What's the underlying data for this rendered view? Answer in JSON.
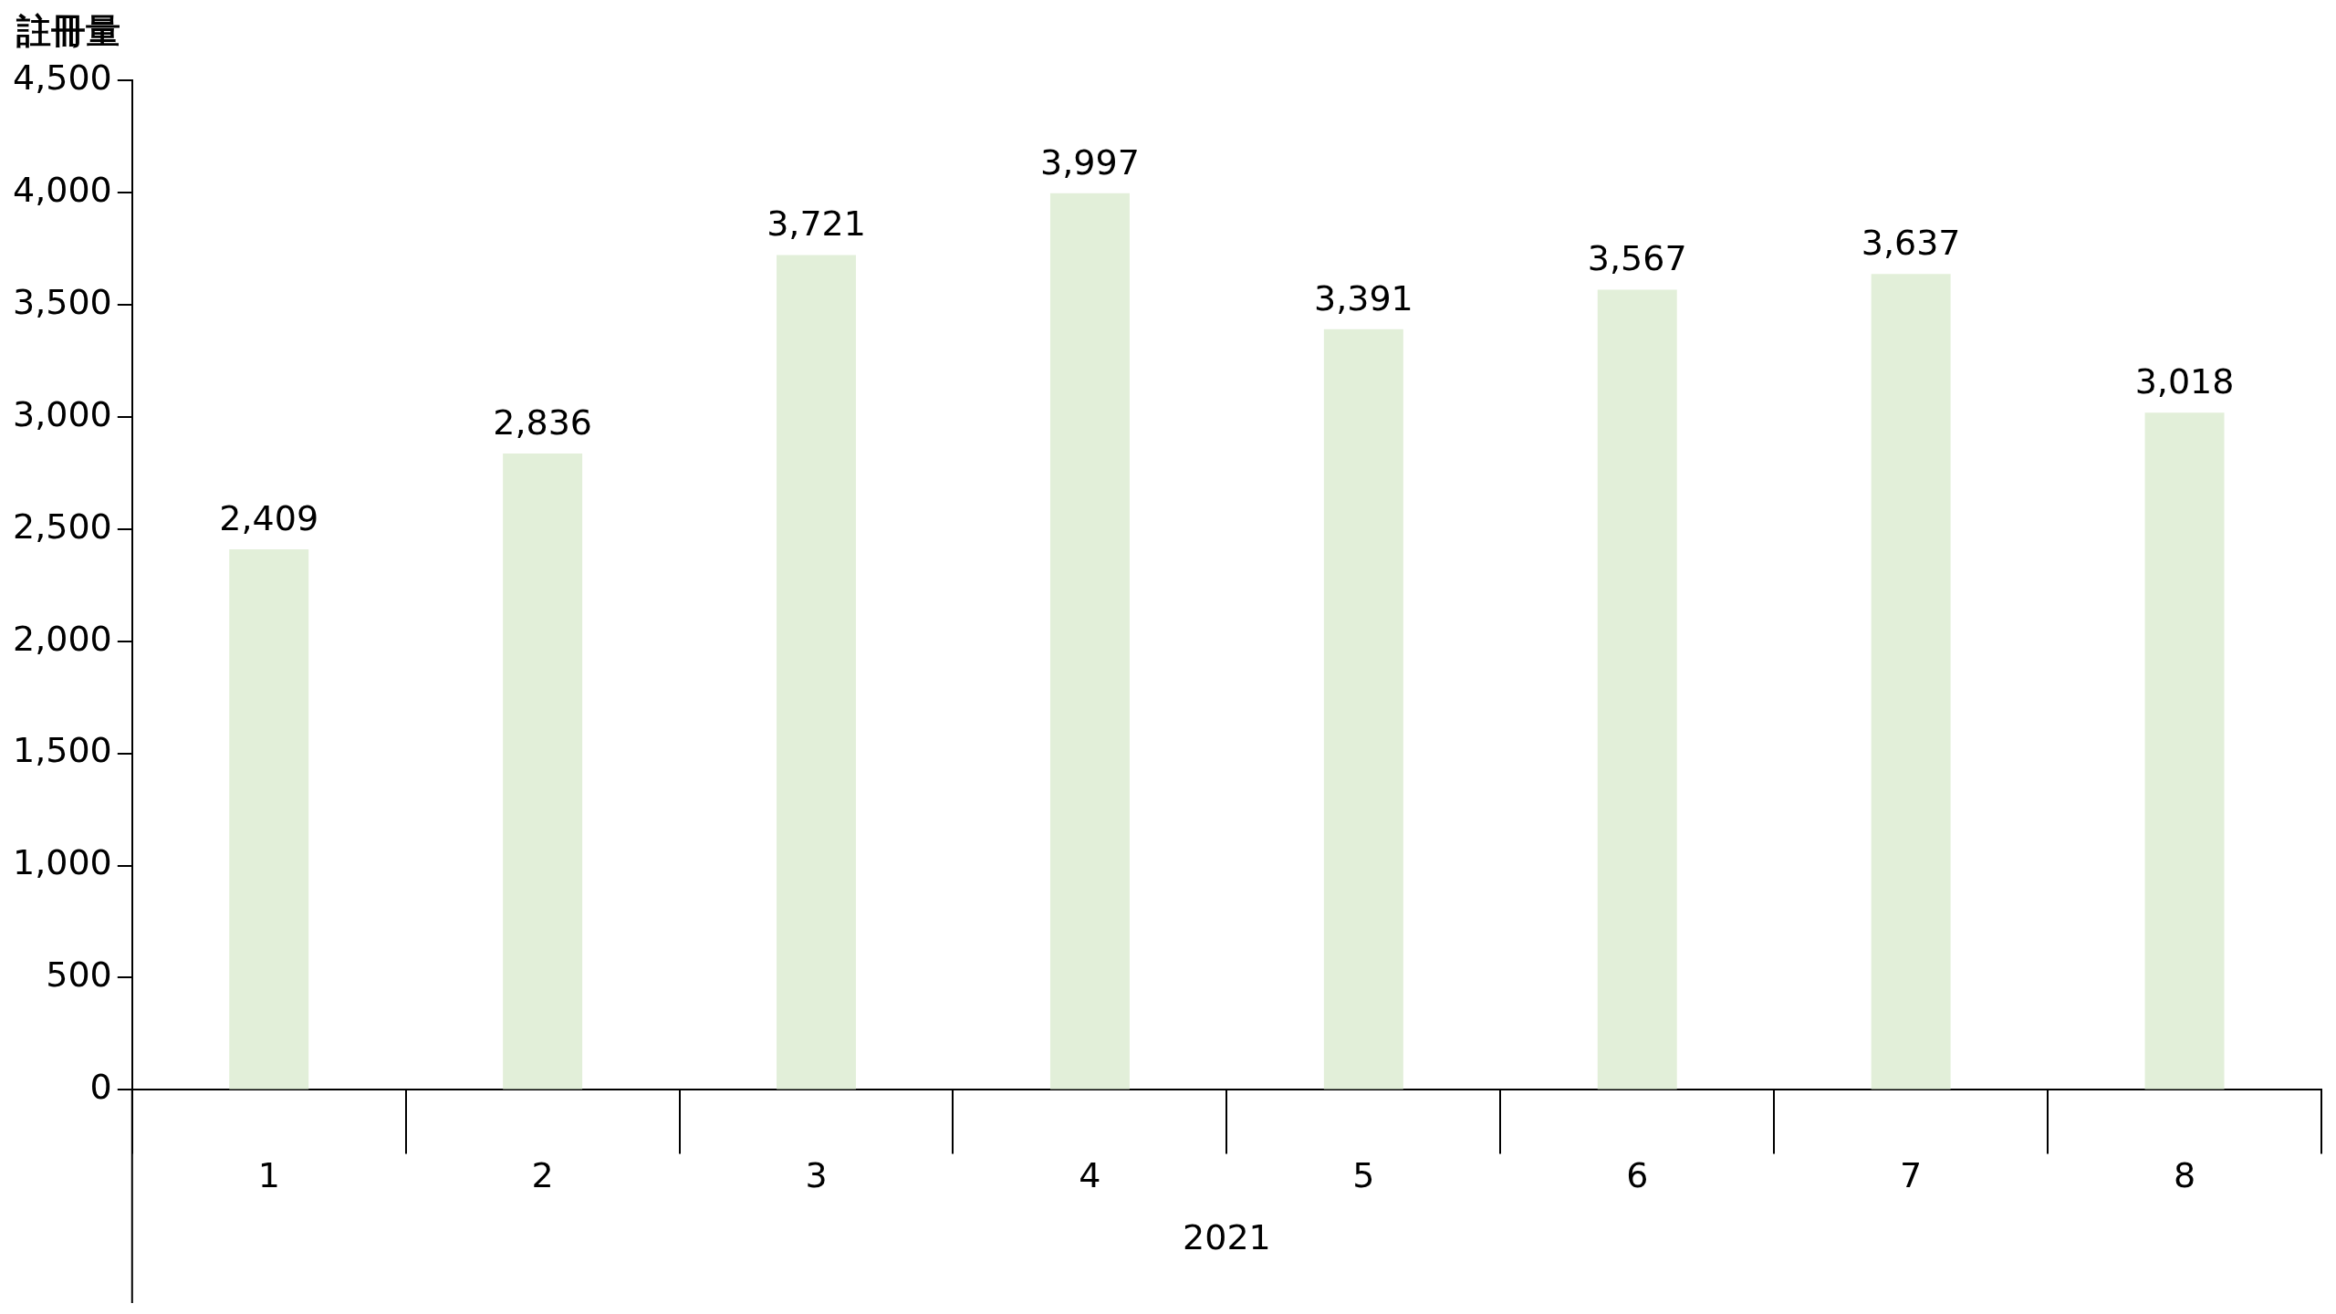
{
  "chart_data": {
    "type": "bar",
    "ylabel": "註冊量",
    "xlabel": "2021",
    "categories": [
      "1",
      "2",
      "3",
      "4",
      "5",
      "6",
      "7",
      "8"
    ],
    "series": [
      {
        "color": "#e2efd9",
        "values": [
          2409,
          2836,
          3721,
          3997,
          3391,
          3567,
          3637,
          3018
        ],
        "value_labels": [
          "2,409",
          "2,836",
          "3,721",
          "3,997",
          "3,391",
          "3,567",
          "3,637",
          "3,018"
        ]
      }
    ],
    "ylim": [
      0,
      4500
    ],
    "yticks": [
      0,
      500,
      {
        "value": 1000,
        "label": "1,000"
      },
      {
        "value": 1500,
        "label": "1,500"
      },
      {
        "value": 2000,
        "label": "2,000"
      },
      {
        "value": 2500,
        "label": "2,500"
      },
      {
        "value": 3000,
        "label": "3,000"
      },
      {
        "value": 3500,
        "label": "3,500"
      },
      {
        "value": 4000,
        "label": "4,000"
      },
      {
        "value": 4500,
        "label": "4,500"
      }
    ],
    "grid": false,
    "legend": false
  }
}
